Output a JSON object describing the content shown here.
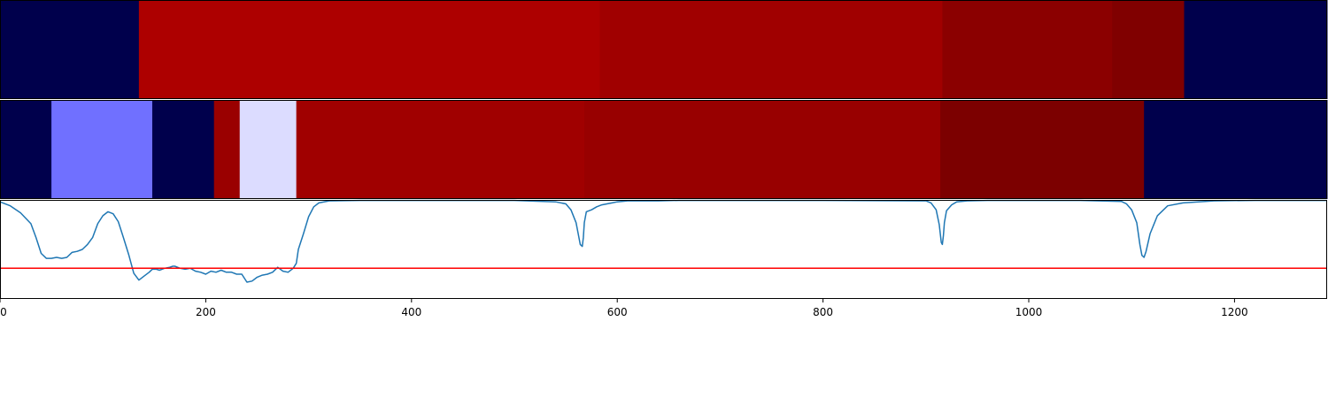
{
  "chart_data": {
    "type": "heatmap",
    "xlim": [
      0,
      1290
    ],
    "x_ticks": [
      0,
      200,
      400,
      600,
      800,
      1000,
      1200
    ],
    "x_tick_labels": [
      "0",
      "200",
      "400",
      "600",
      "800",
      "1000",
      "1200"
    ],
    "grid": false,
    "heatmap_rows": [
      {
        "segments": [
          {
            "start": 0,
            "end": 135,
            "color": "#00004c"
          },
          {
            "start": 135,
            "end": 583,
            "color": "#ad0000"
          },
          {
            "start": 583,
            "end": 916,
            "color": "#a00000"
          },
          {
            "start": 916,
            "end": 1081,
            "color": "#8b0000"
          },
          {
            "start": 1081,
            "end": 1151,
            "color": "#800000"
          },
          {
            "start": 1151,
            "end": 1290,
            "color": "#00004c"
          }
        ]
      },
      {
        "segments": [
          {
            "start": 0,
            "end": 50,
            "color": "#00004c"
          },
          {
            "start": 50,
            "end": 148,
            "color": "#7070ff"
          },
          {
            "start": 148,
            "end": 208,
            "color": "#00004c"
          },
          {
            "start": 208,
            "end": 233,
            "color": "#9a0000"
          },
          {
            "start": 233,
            "end": 288,
            "color": "#dcdcff"
          },
          {
            "start": 288,
            "end": 568,
            "color": "#a00000"
          },
          {
            "start": 568,
            "end": 914,
            "color": "#980000"
          },
          {
            "start": 914,
            "end": 1112,
            "color": "#7c0000"
          },
          {
            "start": 1112,
            "end": 1290,
            "color": "#00004c"
          }
        ]
      }
    ],
    "line_series": {
      "color": "#1f77b4",
      "ylim": [
        0,
        1
      ],
      "x": [
        0,
        10,
        20,
        30,
        35,
        40,
        45,
        50,
        55,
        60,
        65,
        70,
        75,
        80,
        85,
        90,
        95,
        100,
        105,
        110,
        115,
        120,
        125,
        130,
        135,
        140,
        145,
        148,
        152,
        155,
        160,
        165,
        168,
        170,
        175,
        180,
        185,
        190,
        195,
        200,
        205,
        210,
        215,
        220,
        225,
        230,
        235,
        240,
        245,
        250,
        255,
        260,
        265,
        270,
        275,
        280,
        285,
        288,
        290,
        295,
        300,
        305,
        310,
        320,
        350,
        400,
        450,
        500,
        540,
        550,
        555,
        560,
        564,
        566,
        567,
        568,
        570,
        575,
        580,
        585,
        590,
        595,
        600,
        610,
        620,
        640,
        660,
        700,
        800,
        900,
        905,
        910,
        913,
        915,
        916,
        917,
        918,
        920,
        925,
        930,
        940,
        960,
        1000,
        1050,
        1090,
        1095,
        1100,
        1105,
        1108,
        1110,
        1112,
        1114,
        1118,
        1125,
        1135,
        1150,
        1180,
        1220,
        1260,
        1290
      ],
      "y": [
        0.98,
        0.94,
        0.87,
        0.76,
        0.62,
        0.46,
        0.41,
        0.41,
        0.42,
        0.41,
        0.42,
        0.47,
        0.48,
        0.5,
        0.55,
        0.62,
        0.76,
        0.84,
        0.88,
        0.86,
        0.78,
        0.62,
        0.45,
        0.26,
        0.19,
        0.23,
        0.27,
        0.3,
        0.3,
        0.29,
        0.31,
        0.32,
        0.33,
        0.33,
        0.31,
        0.3,
        0.31,
        0.28,
        0.27,
        0.25,
        0.28,
        0.27,
        0.29,
        0.27,
        0.27,
        0.25,
        0.25,
        0.17,
        0.18,
        0.22,
        0.24,
        0.25,
        0.27,
        0.32,
        0.28,
        0.27,
        0.31,
        0.36,
        0.5,
        0.66,
        0.83,
        0.93,
        0.97,
        0.99,
        0.995,
        0.995,
        0.995,
        0.995,
        0.98,
        0.96,
        0.9,
        0.77,
        0.55,
        0.53,
        0.62,
        0.77,
        0.88,
        0.9,
        0.93,
        0.95,
        0.96,
        0.97,
        0.98,
        0.99,
        0.99,
        0.99,
        0.995,
        0.995,
        0.995,
        0.99,
        0.97,
        0.9,
        0.75,
        0.57,
        0.55,
        0.64,
        0.77,
        0.89,
        0.95,
        0.98,
        0.99,
        0.995,
        0.995,
        0.995,
        0.985,
        0.96,
        0.9,
        0.77,
        0.55,
        0.44,
        0.42,
        0.48,
        0.66,
        0.84,
        0.94,
        0.97,
        0.99,
        0.995,
        0.995,
        0.995
      ]
    },
    "threshold": {
      "value": 0.31,
      "color": "#ff0000"
    }
  }
}
